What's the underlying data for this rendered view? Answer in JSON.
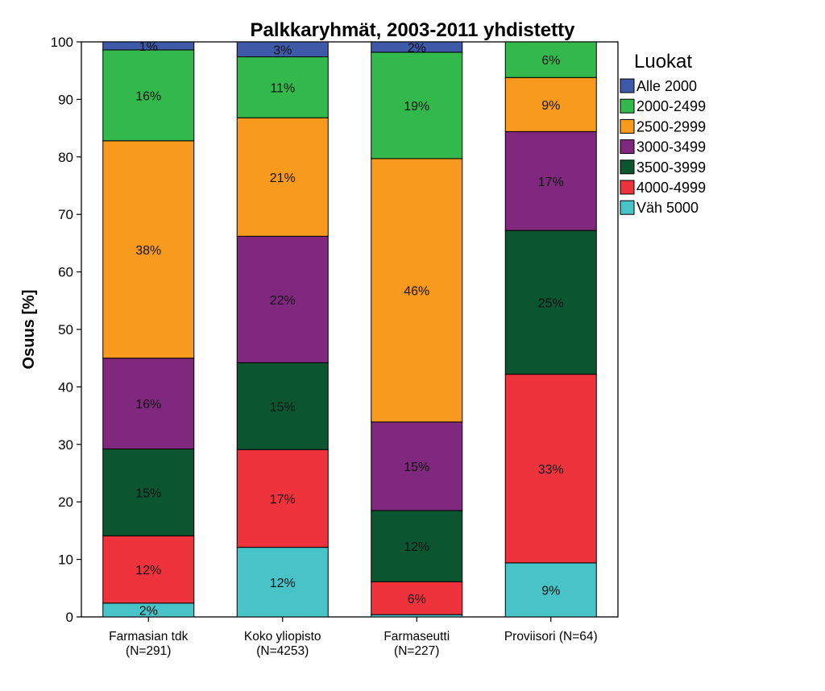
{
  "chart_data": {
    "type": "bar",
    "stacked": true,
    "title": "Palkkaryhmät, 2003-2011 yhdistetty",
    "ylabel": "Osuus [%]",
    "ylim": [
      0,
      100
    ],
    "yticks": [
      0,
      10,
      20,
      30,
      40,
      50,
      60,
      70,
      80,
      90,
      100
    ],
    "legend_title": "Luokat",
    "legend_position": "right",
    "categories": [
      {
        "line1": "Farmasian tdk",
        "line2": "(N=291)"
      },
      {
        "line1": "Koko yliopisto",
        "line2": "(N=4253)"
      },
      {
        "line1": "Farmaseutti",
        "line2": "(N=227)"
      },
      {
        "line1": "Proviisori (N=64)",
        "line2": ""
      }
    ],
    "series": [
      {
        "name": "Väh 5000",
        "color": "#48c3c7",
        "values": [
          2.4,
          12.1,
          0.4,
          9.4
        ],
        "labels": [
          "2%",
          "12%",
          "",
          "9%"
        ]
      },
      {
        "name": "4000-4999",
        "color": "#ef333d",
        "values": [
          11.7,
          17.0,
          5.7,
          32.8
        ],
        "labels": [
          "12%",
          "17%",
          "6%",
          "33%"
        ]
      },
      {
        "name": "3500-3999",
        "color": "#0b5530",
        "values": [
          15.1,
          15.1,
          12.4,
          25.0
        ],
        "labels": [
          "15%",
          "15%",
          "12%",
          "25%"
        ]
      },
      {
        "name": "3000-3499",
        "color": "#7f287d",
        "values": [
          15.8,
          22.0,
          15.4,
          17.2
        ],
        "labels": [
          "16%",
          "22%",
          "15%",
          "17%"
        ]
      },
      {
        "name": "2500-2999",
        "color": "#f79a1e",
        "values": [
          37.8,
          20.6,
          45.8,
          9.4
        ],
        "labels": [
          "38%",
          "21%",
          "46%",
          "9%"
        ]
      },
      {
        "name": "2000-2499",
        "color": "#32b84b",
        "values": [
          15.8,
          10.6,
          18.5,
          6.2
        ],
        "labels": [
          "16%",
          "11%",
          "19%",
          "6%"
        ]
      },
      {
        "name": "Alle 2000",
        "color": "#3e59a8",
        "values": [
          1.4,
          2.6,
          1.8,
          0.0
        ],
        "labels": [
          "1%",
          "3%",
          "2%",
          ""
        ]
      }
    ]
  }
}
